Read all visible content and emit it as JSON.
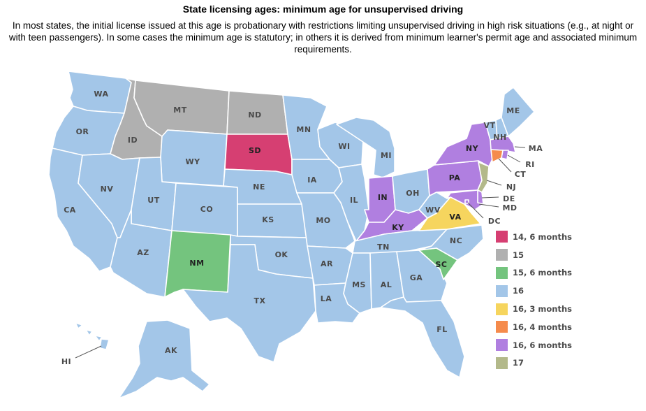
{
  "title": "State licensing ages: minimum age for unsupervised driving",
  "subtitle": "In most states, the initial license issued at this age is probationary with restrictions limiting unsupervised driving in high risk situations (e.g., at night or with teen passengers). In some cases the minimum age is statutory; in others it is derived from minimum learner's permit age and associated minimum requirements.",
  "colors": {
    "14_6": "#d63f72",
    "15": "#b0b0b0",
    "15_6": "#74c47e",
    "16": "#a3c6e8",
    "16_3": "#f6d55e",
    "16_4": "#f58b4c",
    "16_6": "#b07fe0",
    "17": "#b3b98a"
  },
  "legend": [
    {
      "label": "14, 6 months",
      "color": "#d63f72"
    },
    {
      "label": "15",
      "color": "#b0b0b0"
    },
    {
      "label": "15, 6 months",
      "color": "#74c47e"
    },
    {
      "label": "16",
      "color": "#a3c6e8"
    },
    {
      "label": "16, 3 months",
      "color": "#f6d55e"
    },
    {
      "label": "16, 4 months",
      "color": "#f58b4c"
    },
    {
      "label": "16, 6 months",
      "color": "#b07fe0"
    },
    {
      "label": "17",
      "color": "#b3b98a"
    }
  ],
  "states": {
    "WA": {
      "label": "WA",
      "category": "16"
    },
    "OR": {
      "label": "OR",
      "category": "16"
    },
    "CA": {
      "label": "CA",
      "category": "16"
    },
    "ID": {
      "label": "ID",
      "category": "15"
    },
    "NV": {
      "label": "NV",
      "category": "16"
    },
    "MT": {
      "label": "MT",
      "category": "15"
    },
    "WY": {
      "label": "WY",
      "category": "16"
    },
    "UT": {
      "label": "UT",
      "category": "16"
    },
    "AZ": {
      "label": "AZ",
      "category": "16"
    },
    "CO": {
      "label": "CO",
      "category": "16"
    },
    "NM": {
      "label": "NM",
      "category": "15, 6 months"
    },
    "ND": {
      "label": "ND",
      "category": "15"
    },
    "SD": {
      "label": "SD",
      "category": "14, 6 months"
    },
    "NE": {
      "label": "NE",
      "category": "16"
    },
    "KS": {
      "label": "KS",
      "category": "16"
    },
    "OK": {
      "label": "OK",
      "category": "16"
    },
    "TX": {
      "label": "TX",
      "category": "16"
    },
    "MN": {
      "label": "MN",
      "category": "16"
    },
    "IA": {
      "label": "IA",
      "category": "16"
    },
    "MO": {
      "label": "MO",
      "category": "16"
    },
    "AR": {
      "label": "AR",
      "category": "16"
    },
    "LA": {
      "label": "LA",
      "category": "16"
    },
    "WI": {
      "label": "WI",
      "category": "16"
    },
    "IL": {
      "label": "IL",
      "category": "16"
    },
    "MI": {
      "label": "MI",
      "category": "16"
    },
    "IN": {
      "label": "IN",
      "category": "16, 6 months"
    },
    "OH": {
      "label": "OH",
      "category": "16"
    },
    "KY": {
      "label": "KY",
      "category": "16, 6 months"
    },
    "TN": {
      "label": "TN",
      "category": "16"
    },
    "MS": {
      "label": "MS",
      "category": "16"
    },
    "AL": {
      "label": "AL",
      "category": "16"
    },
    "GA": {
      "label": "GA",
      "category": "16"
    },
    "FL": {
      "label": "FL",
      "category": "16"
    },
    "SC": {
      "label": "SC",
      "category": "15, 6 months"
    },
    "NC": {
      "label": "NC",
      "category": "16"
    },
    "VA": {
      "label": "VA",
      "category": "16, 3 months"
    },
    "WV": {
      "label": "WV",
      "category": "16"
    },
    "PA": {
      "label": "PA",
      "category": "16, 6 months"
    },
    "NY": {
      "label": "NY",
      "category": "16, 6 months"
    },
    "VT": {
      "label": "VT",
      "category": "16"
    },
    "NH": {
      "label": "NH",
      "category": "16"
    },
    "ME": {
      "label": "ME",
      "category": "16"
    },
    "MA": {
      "label": "MA",
      "category": "16, 6 months"
    },
    "RI": {
      "label": "RI",
      "category": "16, 6 months"
    },
    "CT": {
      "label": "CT",
      "category": "16, 4 months"
    },
    "NJ": {
      "label": "NJ",
      "category": "17"
    },
    "DE": {
      "label": "DE",
      "category": "16, 6 months"
    },
    "MD": {
      "label": "MD",
      "category": "16, 6 months"
    },
    "DC": {
      "label": "DC",
      "category": "16, 6 months"
    },
    "AK": {
      "label": "AK",
      "category": "16"
    },
    "HI": {
      "label": "HI",
      "category": "16"
    }
  }
}
